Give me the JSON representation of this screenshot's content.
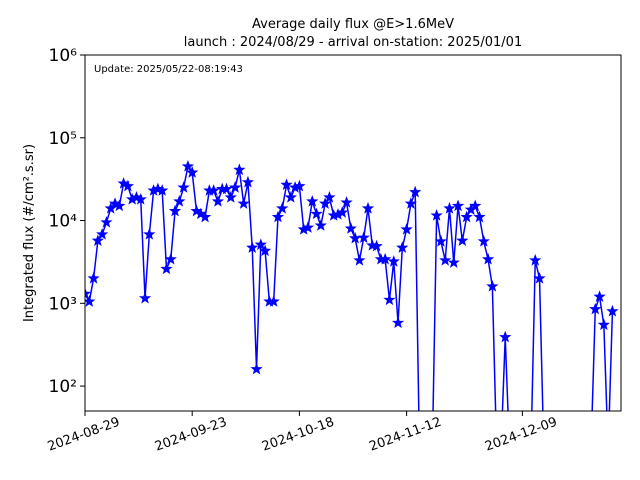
{
  "chart_data": {
    "type": "line",
    "title": "Average daily flux @E>1.6MeV",
    "subtitle": "launch : 2024/08/29 - arrival on-station: 2025/01/01",
    "annotation": "Update: 2025/05/22-08:19:43",
    "y_label": "Integrated flux (#/cm².s.sr)",
    "log_scale": true,
    "marker": "star",
    "x": [
      "2024-08-29",
      "2024-08-30",
      "2024-08-31",
      "2024-09-01",
      "2024-09-02",
      "2024-09-03",
      "2024-09-04",
      "2024-09-05",
      "2024-09-06",
      "2024-09-07",
      "2024-09-08",
      "2024-09-09",
      "2024-09-10",
      "2024-09-11",
      "2024-09-12",
      "2024-09-13",
      "2024-09-14",
      "2024-09-15",
      "2024-09-16",
      "2024-09-17",
      "2024-09-18",
      "2024-09-19",
      "2024-09-20",
      "2024-09-21",
      "2024-09-22",
      "2024-09-23",
      "2024-09-24",
      "2024-09-25",
      "2024-09-26",
      "2024-09-27",
      "2024-09-28",
      "2024-09-29",
      "2024-09-30",
      "2024-10-01",
      "2024-10-02",
      "2024-10-03",
      "2024-10-04",
      "2024-10-05",
      "2024-10-06",
      "2024-10-07",
      "2024-10-08",
      "2024-10-09",
      "2024-10-10",
      "2024-10-11",
      "2024-10-12",
      "2024-10-13",
      "2024-10-14",
      "2024-10-15",
      "2024-10-16",
      "2024-10-17",
      "2024-10-18",
      "2024-10-19",
      "2024-10-20",
      "2024-10-21",
      "2024-10-22",
      "2024-10-23",
      "2024-10-24",
      "2024-10-25",
      "2024-10-26",
      "2024-10-27",
      "2024-10-28",
      "2024-10-29",
      "2024-10-30",
      "2024-10-31",
      "2024-11-01",
      "2024-11-02",
      "2024-11-03",
      "2024-11-04",
      "2024-11-05",
      "2024-11-06",
      "2024-11-07",
      "2024-11-08",
      "2024-11-09",
      "2024-11-10",
      "2024-11-11",
      "2024-11-12",
      "2024-11-13",
      "2024-11-14",
      "2024-11-15",
      "2024-11-16",
      "2024-11-17",
      "2024-11-18",
      "2024-11-19",
      "2024-11-20",
      "2024-11-21",
      "2024-11-22",
      "2024-11-23",
      "2024-11-24",
      "2024-11-25",
      "2024-11-26",
      "2024-11-27",
      "2024-11-28",
      "2024-11-29",
      "2024-11-30",
      "2024-12-01",
      "2024-12-02",
      "2024-12-03",
      "2024-12-04",
      "2024-12-05",
      "2024-12-06",
      "2024-12-07",
      "2024-12-08",
      "2024-12-09",
      "2024-12-10",
      "2024-12-11",
      "2024-12-12",
      "2024-12-13",
      "2024-12-14",
      "2024-12-15",
      "2024-12-16",
      "2024-12-17",
      "2024-12-18",
      "2024-12-19",
      "2024-12-20",
      "2024-12-21",
      "2024-12-22",
      "2024-12-23",
      "2024-12-24",
      "2024-12-25",
      "2024-12-26",
      "2024-12-27",
      "2024-12-28",
      "2024-12-29",
      "2024-12-30"
    ],
    "series": [
      {
        "color": "#0000ff",
        "values": [
          1300,
          1050,
          2000,
          5700,
          6800,
          9500,
          14000,
          16000,
          15000,
          28000,
          26000,
          18000,
          19000,
          18000,
          1150,
          6800,
          23000,
          24000,
          23000,
          2600,
          3400,
          13000,
          17000,
          25000,
          45000,
          38000,
          13000,
          12000,
          11000,
          23000,
          23000,
          17000,
          24000,
          24000,
          19000,
          25000,
          41000,
          16000,
          29000,
          4700,
          160,
          5100,
          4300,
          1050,
          1050,
          11000,
          14000,
          27000,
          19000,
          25000,
          26000,
          7800,
          8200,
          17000,
          12000,
          8700,
          16000,
          19000,
          11500,
          11800,
          12500,
          16500,
          8000,
          6100,
          3300,
          6200,
          14000,
          5000,
          4900,
          3400,
          3400,
          1100,
          3200,
          580,
          4700,
          7800,
          16000,
          22000,
          0,
          0,
          0,
          0,
          11500,
          5600,
          3300,
          14000,
          3100,
          15000,
          5700,
          11000,
          13500,
          15000,
          11000,
          5600,
          3400,
          1600,
          0,
          0,
          390,
          0,
          0,
          0,
          0,
          0,
          0,
          3300,
          2000,
          0,
          0,
          0,
          0,
          0,
          0,
          0,
          0,
          0,
          0,
          0,
          0,
          850,
          1200,
          550,
          0,
          800
        ]
      }
    ],
    "xlim": [
      "2024-08-29",
      "2025-01-01"
    ],
    "xticks": [
      "2024-08-29",
      "2024-09-23",
      "2024-10-18",
      "2024-11-12",
      "2024-12-09"
    ],
    "ylim": [
      50,
      1000000
    ],
    "yticks": [
      {
        "value": 100,
        "label": "10²"
      },
      {
        "value": 1000,
        "label": "10³"
      },
      {
        "value": 10000,
        "label": "10⁴"
      },
      {
        "value": 100000,
        "label": "10⁵"
      },
      {
        "value": 1000000,
        "label": "10⁶"
      }
    ]
  }
}
